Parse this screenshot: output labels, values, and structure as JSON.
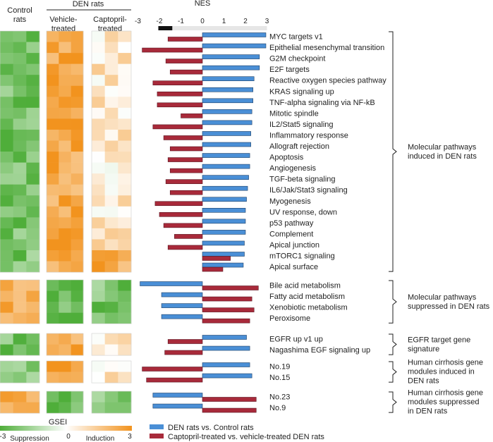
{
  "headers": {
    "control": [
      "Control",
      "rats"
    ],
    "den": "DEN rats",
    "vehicle": [
      "Vehicle-",
      "treated"
    ],
    "captopril": [
      "Captopril-",
      "treated"
    ],
    "nes_title": "NES"
  },
  "chart_data": {
    "type": "bar",
    "nes_axis": {
      "ticks": [
        "-3",
        "-2",
        "-1",
        "0",
        "1",
        "2",
        "3"
      ],
      "xlim": [
        -3,
        3
      ]
    },
    "colors": {
      "den_vs_control": "#4a8fd6",
      "captopril_vs_vehicle": "#a82a3a"
    },
    "series": [
      {
        "name": "DEN rats vs. Control rats",
        "key": "den_vs_control"
      },
      {
        "name": "Captopril-treated vs. vehicle-treated DEN rats",
        "key": "captopril_vs_vehicle"
      }
    ],
    "groups": [
      {
        "label": [
          "Molecular pathways",
          "induced in DEN rats"
        ],
        "rows": [
          {
            "name": "MYC targets v1",
            "den": 2.95,
            "cap": -1.6
          },
          {
            "name": "Epithelial mesenchymal transition",
            "den": 2.95,
            "cap": -2.8
          },
          {
            "name": "G2M checkpoint",
            "den": 2.65,
            "cap": -1.7
          },
          {
            "name": "E2F targets",
            "den": 2.65,
            "cap": -1.5
          },
          {
            "name": "Reactive oxygen species pathway",
            "den": 2.4,
            "cap": -2.3
          },
          {
            "name": "KRAS signaling up",
            "den": 2.35,
            "cap": -2.1
          },
          {
            "name": "TNF-alpha signaling via NF-kB",
            "den": 2.35,
            "cap": -2.1
          },
          {
            "name": "Mitotic spindle",
            "den": 2.3,
            "cap": -1.0
          },
          {
            "name": "IL2/Stat5 signaling",
            "den": 2.3,
            "cap": -2.3
          },
          {
            "name": "Inflammatory response",
            "den": 2.25,
            "cap": -1.8
          },
          {
            "name": "Allograft rejection",
            "den": 2.25,
            "cap": -1.5
          },
          {
            "name": "Apoptosis",
            "den": 2.2,
            "cap": -1.6
          },
          {
            "name": "Angiogenesis",
            "den": 2.2,
            "cap": -1.5
          },
          {
            "name": "TGF-beta signaling",
            "den": 2.15,
            "cap": -1.7
          },
          {
            "name": "IL6/Jak/Stat3 signaling",
            "den": 2.1,
            "cap": -1.5
          },
          {
            "name": "Myogenesis",
            "den": 2.05,
            "cap": -2.2
          },
          {
            "name": "UV response, down",
            "den": 2.0,
            "cap": -2.0
          },
          {
            "name": "p53 pathway",
            "den": 2.0,
            "cap": -1.8
          },
          {
            "name": "Complement",
            "den": 2.0,
            "cap": -1.3
          },
          {
            "name": "Apical junction",
            "den": 1.95,
            "cap": -1.6
          },
          {
            "name": "mTORC1 signaling",
            "den": 1.95,
            "cap": 1.3
          },
          {
            "name": "Apical surface",
            "den": 1.9,
            "cap": 0.95
          }
        ]
      },
      {
        "label": [
          "Molecular pathways",
          "suppressed in DEN rats"
        ],
        "rows": [
          {
            "name": "Bile acid metabolism",
            "den": -2.9,
            "cap": 2.6
          },
          {
            "name": "Fatty acid metabolism",
            "den": -1.9,
            "cap": 2.3
          },
          {
            "name": "Xenobiotic metabolism",
            "den": -1.9,
            "cap": 2.4
          },
          {
            "name": "Peroxisome",
            "den": -1.9,
            "cap": 2.2
          }
        ]
      },
      {
        "label": [
          "EGFR target gene",
          "signature"
        ],
        "rows": [
          {
            "name": "EGFR up v1 up",
            "den": 2.05,
            "cap": -1.6
          },
          {
            "name": "Nagashima EGF signaling up",
            "den": 2.2,
            "cap": -1.75
          }
        ]
      },
      {
        "label": [
          "Human cirrhosis gene",
          "modules induced in",
          "DEN rats"
        ],
        "rows": [
          {
            "name": "No.19",
            "den": 2.2,
            "cap": -2.8
          },
          {
            "name": "No.15",
            "den": 2.3,
            "cap": -2.6
          }
        ]
      },
      {
        "label": [
          "Human cirrhosis gene",
          "modules suppressed",
          "in DEN rats"
        ],
        "rows": [
          {
            "name": "No.23",
            "den": -2.3,
            "cap": 2.5
          },
          {
            "name": "No.9",
            "den": -2.3,
            "cap": 2.5
          }
        ]
      }
    ],
    "heatmap": {
      "title": "GSEI",
      "range": [
        -3,
        3
      ],
      "scale_ticks": [
        "-3",
        "0",
        "3"
      ],
      "scale_labels": [
        "Suppression",
        "Induction"
      ],
      "colors": [
        "#4fae3a",
        "#ffffff",
        "#f2931e"
      ]
    }
  }
}
